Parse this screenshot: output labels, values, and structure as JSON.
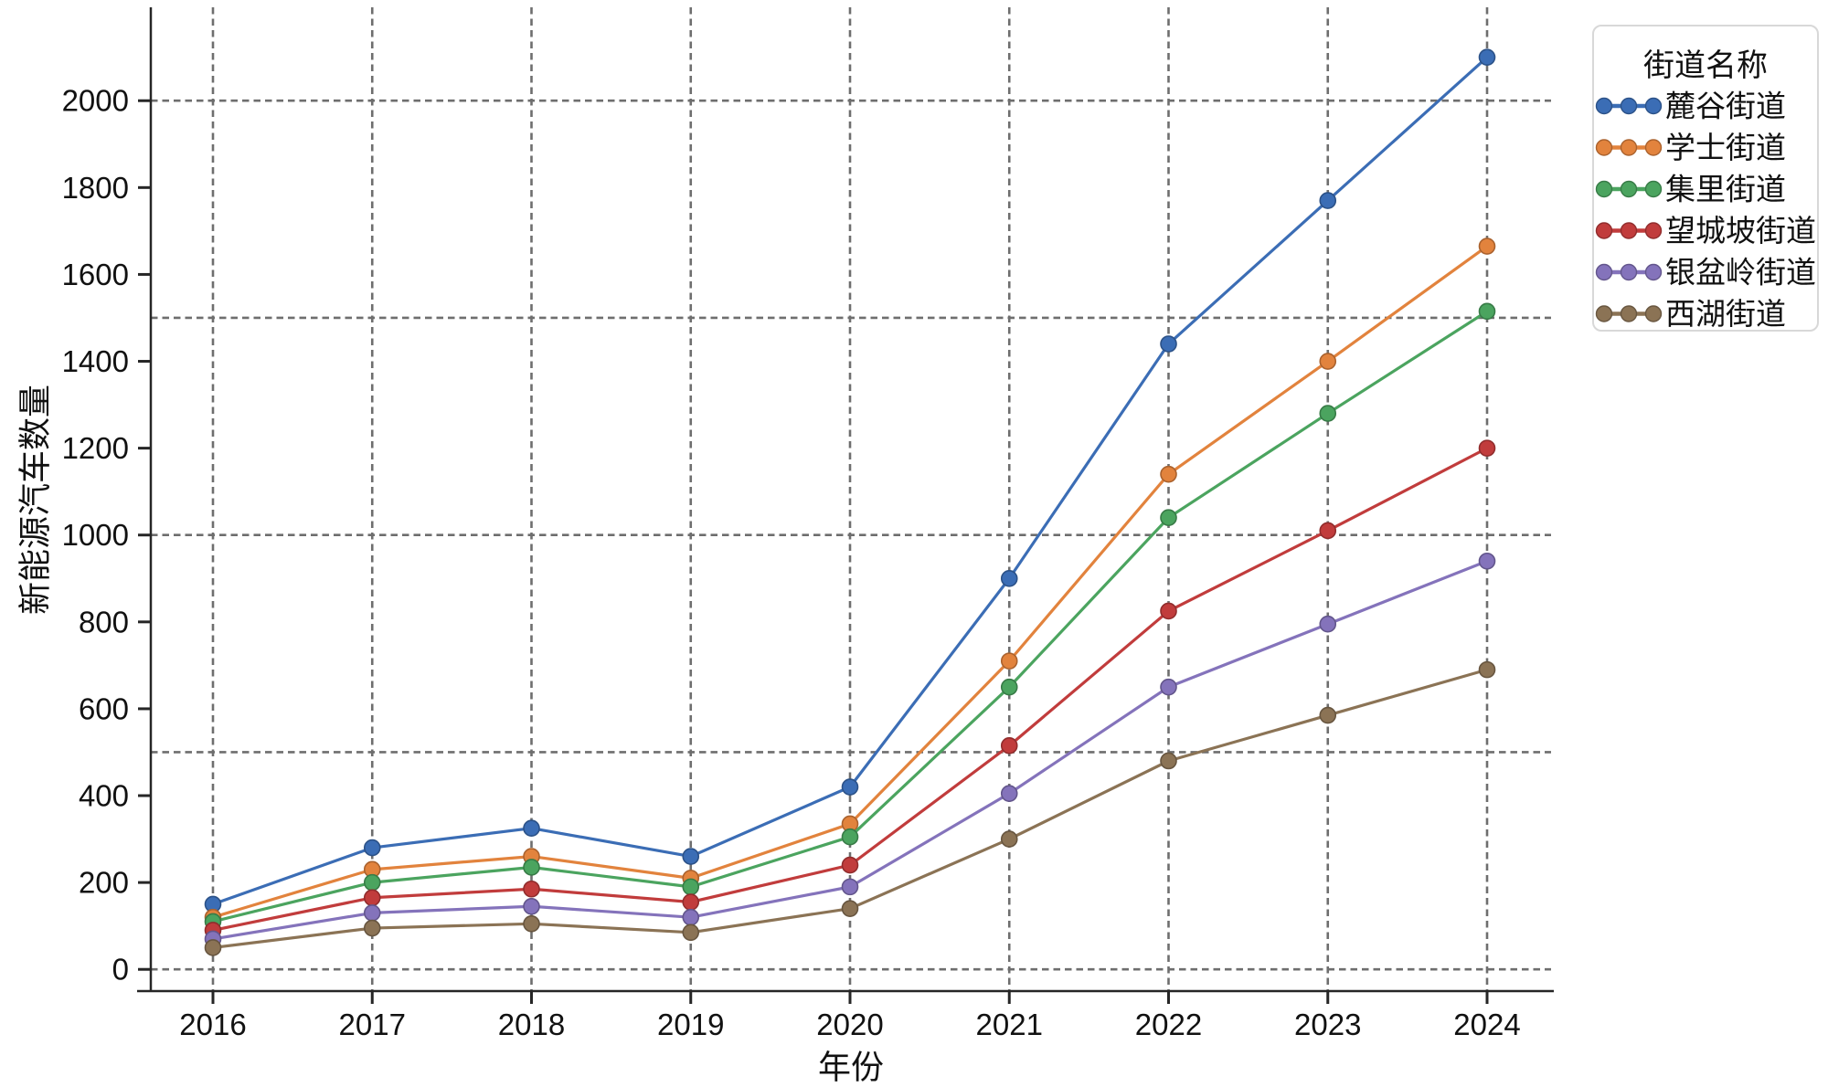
{
  "figure": {
    "background": "#ffffff"
  },
  "chart_data": {
    "type": "line",
    "title": "",
    "xlabel": "年份",
    "ylabel": "新能源汽车数量",
    "legend_title": "街道名称",
    "legend_position": "upper-right-outside",
    "grid": {
      "style": "dashed",
      "color": "#6e6e6e",
      "horizontal_at": [
        0,
        500,
        1000,
        1500,
        2000
      ],
      "vertical_at_every_x": true
    },
    "axis_color": "#262626",
    "x": [
      2016,
      2017,
      2018,
      2019,
      2020,
      2021,
      2022,
      2023,
      2024
    ],
    "yticks": [
      0,
      200,
      400,
      600,
      800,
      1000,
      1200,
      1400,
      1600,
      1800,
      2000
    ],
    "ylim": [
      -50,
      2215
    ],
    "marker": "circle",
    "legend_marker": "line-with-3-dots",
    "series": [
      {
        "name": "麓谷街道",
        "color": "#3B6DB5",
        "values": [
          150,
          280,
          325,
          260,
          420,
          900,
          1440,
          1770,
          2100
        ]
      },
      {
        "name": "学士街道",
        "color": "#E2833D",
        "values": [
          120,
          230,
          260,
          210,
          335,
          710,
          1140,
          1400,
          1665
        ]
      },
      {
        "name": "集里街道",
        "color": "#4BA45F",
        "values": [
          110,
          200,
          235,
          190,
          305,
          650,
          1040,
          1280,
          1515
        ]
      },
      {
        "name": "望城坡街道",
        "color": "#C13C3C",
        "values": [
          90,
          165,
          185,
          155,
          240,
          515,
          825,
          1010,
          1200
        ]
      },
      {
        "name": "银盆岭街道",
        "color": "#8473BB",
        "values": [
          70,
          130,
          145,
          120,
          190,
          405,
          650,
          795,
          940
        ]
      },
      {
        "name": "西湖街道",
        "color": "#8B7355",
        "values": [
          50,
          95,
          105,
          85,
          140,
          300,
          480,
          585,
          690
        ]
      }
    ]
  }
}
